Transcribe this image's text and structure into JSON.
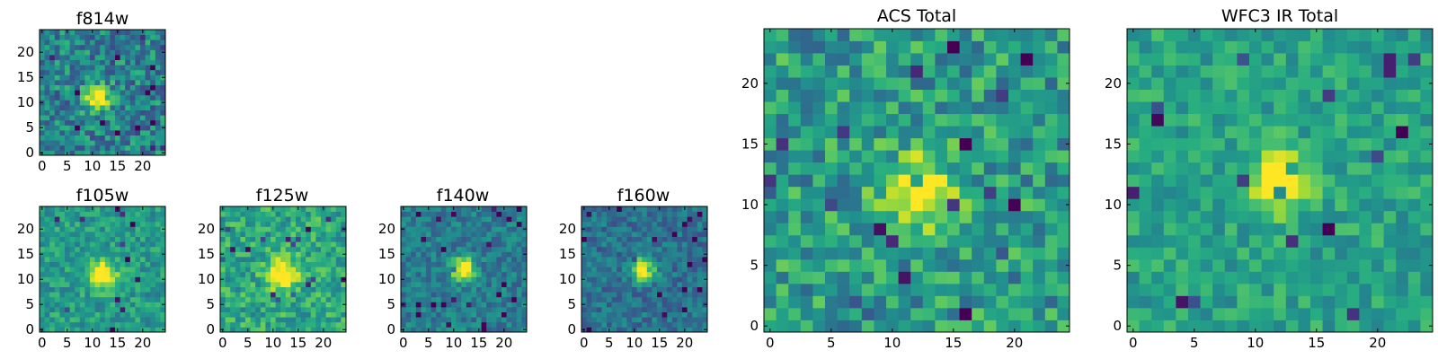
{
  "chart_data": [
    {
      "type": "heatmap",
      "title": "f814w",
      "grid": false,
      "colormap": "viridis",
      "colorbar": false,
      "xlim": [
        -0.5,
        24.5
      ],
      "ylim": [
        -0.5,
        24.5
      ],
      "xticks": [
        0,
        5,
        10,
        15,
        20
      ],
      "yticks": [
        0,
        5,
        10,
        15,
        20
      ],
      "shape": [
        25,
        25
      ],
      "source": {
        "center": [
          11,
          11
        ],
        "peak": 0.92,
        "sigma": 1.7,
        "background": 0.45,
        "noise": 0.22
      }
    },
    {
      "type": "heatmap",
      "title": "f105w",
      "grid": false,
      "colormap": "viridis",
      "colorbar": false,
      "xlim": [
        -0.5,
        24.5
      ],
      "ylim": [
        -0.5,
        24.5
      ],
      "xticks": [
        0,
        5,
        10,
        15,
        20
      ],
      "yticks": [
        0,
        5,
        10,
        15,
        20
      ],
      "shape": [
        25,
        25
      ],
      "source": {
        "center": [
          12,
          11
        ],
        "peak": 0.95,
        "sigma": 2.0,
        "background": 0.55,
        "noise": 0.15
      }
    },
    {
      "type": "heatmap",
      "title": "f125w",
      "grid": false,
      "colormap": "viridis",
      "colorbar": false,
      "xlim": [
        -0.5,
        24.5
      ],
      "ylim": [
        -0.5,
        24.5
      ],
      "xticks": [
        0,
        5,
        10,
        15,
        20
      ],
      "yticks": [
        0,
        5,
        10,
        15,
        20
      ],
      "shape": [
        25,
        25
      ],
      "source": {
        "center": [
          12,
          11
        ],
        "peak": 0.95,
        "sigma": 2.1,
        "background": 0.6,
        "noise": 0.18
      }
    },
    {
      "type": "heatmap",
      "title": "f140w",
      "grid": false,
      "colormap": "viridis",
      "colorbar": false,
      "xlim": [
        -0.5,
        24.5
      ],
      "ylim": [
        -0.5,
        24.5
      ],
      "xticks": [
        0,
        5,
        10,
        15,
        20
      ],
      "yticks": [
        0,
        5,
        10,
        15,
        20
      ],
      "shape": [
        25,
        25
      ],
      "source": {
        "center": [
          12,
          12
        ],
        "peak": 0.98,
        "sigma": 1.6,
        "background": 0.42,
        "noise": 0.14
      }
    },
    {
      "type": "heatmap",
      "title": "f160w",
      "grid": false,
      "colormap": "viridis",
      "colorbar": false,
      "xlim": [
        -0.5,
        24.5
      ],
      "ylim": [
        -0.5,
        24.5
      ],
      "xticks": [
        0,
        5,
        10,
        15,
        20
      ],
      "yticks": [
        0,
        5,
        10,
        15,
        20
      ],
      "shape": [
        25,
        25
      ],
      "source": {
        "center": [
          12,
          12
        ],
        "peak": 0.98,
        "sigma": 1.6,
        "background": 0.38,
        "noise": 0.14
      }
    },
    {
      "type": "heatmap",
      "title": "ACS Total",
      "grid": false,
      "colormap": "viridis",
      "colorbar": false,
      "xlim": [
        -0.5,
        24.5
      ],
      "ylim": [
        -0.5,
        24.5
      ],
      "xticks": [
        0,
        5,
        10,
        15,
        20
      ],
      "yticks": [
        0,
        5,
        10,
        15,
        20
      ],
      "shape": [
        25,
        25
      ],
      "source": {
        "center": [
          12,
          11
        ],
        "peak": 0.93,
        "sigma": 2.0,
        "background": 0.55,
        "noise": 0.22
      }
    },
    {
      "type": "heatmap",
      "title": "WFC3 IR Total",
      "grid": false,
      "colormap": "viridis",
      "colorbar": false,
      "xlim": [
        -0.5,
        24.5
      ],
      "ylim": [
        -0.5,
        24.5
      ],
      "xticks": [
        0,
        5,
        10,
        15,
        20
      ],
      "yticks": [
        0,
        5,
        10,
        15,
        20
      ],
      "shape": [
        25,
        25
      ],
      "source": {
        "center": [
          12,
          12
        ],
        "peak": 0.96,
        "sigma": 1.7,
        "background": 0.58,
        "noise": 0.14
      }
    }
  ]
}
